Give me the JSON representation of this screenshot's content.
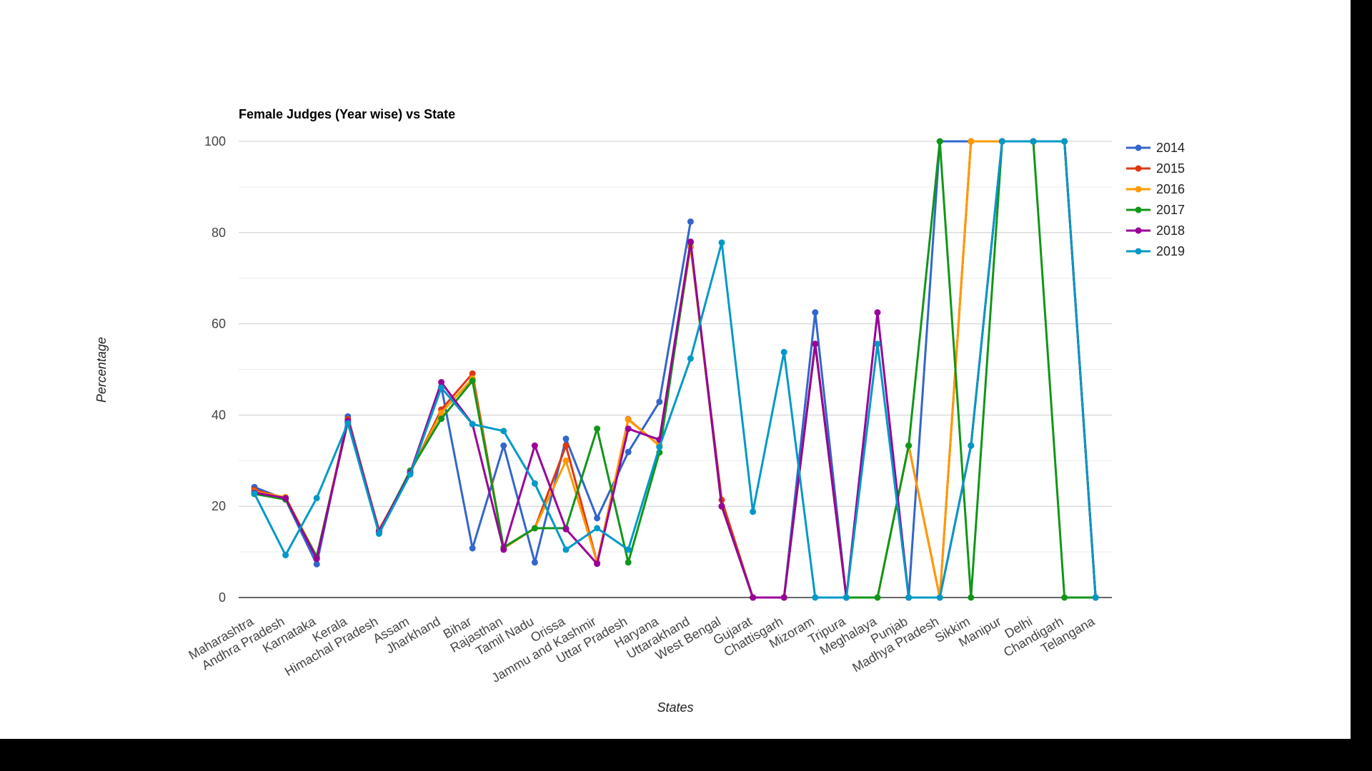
{
  "chart_data": {
    "type": "line",
    "title": "Female Judges (Year wise) vs State",
    "xlabel": "States",
    "ylabel": "Percentage",
    "ylim": [
      0,
      100
    ],
    "yticks": [
      0,
      20,
      40,
      60,
      80,
      100
    ],
    "grid": true,
    "legend_position": "right",
    "categories": [
      "Maharashtra",
      "Andhra Pradesh",
      "Karnataka",
      "Kerala",
      "Himachal Pradesh",
      "Assam",
      "Jharkhand",
      "Bihar",
      "Rajasthan",
      "Tamil Nadu",
      "Orissa",
      "Jammu and Kashmir",
      "Uttar Pradesh",
      "Haryana",
      "Uttarakhand",
      "West Bengal",
      "Gujarat",
      "Chattisgarh",
      "Mizoram",
      "Tripura",
      "Meghalaya",
      "Punjab",
      "Madhya Pradesh",
      "Sikkim",
      "Manipur",
      "Delhi",
      "Chandigarh",
      "Telangana"
    ],
    "series": [
      {
        "name": "2014",
        "color": "#3366cc",
        "values": [
          24.2,
          21.5,
          7.3,
          39.7,
          14.5,
          27.3,
          46.2,
          10.8,
          33.3,
          7.7,
          34.8,
          17.4,
          31.9,
          42.9,
          82.4,
          null,
          0,
          0,
          62.5,
          0,
          null,
          0,
          100,
          100,
          100,
          100,
          100,
          0
        ]
      },
      {
        "name": "2015",
        "color": "#dc3912",
        "values": [
          23.6,
          21.8,
          8.8,
          39.1,
          14.8,
          27.3,
          41.2,
          49.1,
          10.8,
          15.2,
          33.3,
          7.7,
          39.1,
          33.3,
          76.9,
          21.4,
          0,
          0,
          55.6,
          0,
          null,
          33.3,
          0,
          100,
          100,
          100,
          100,
          0
        ]
      },
      {
        "name": "2016",
        "color": "#ff9900",
        "values": [
          23.2,
          22.0,
          9.0,
          38.5,
          14.6,
          27.5,
          40.5,
          48.0,
          10.8,
          15.2,
          30.0,
          7.7,
          39.0,
          33.3,
          77.0,
          20.0,
          0,
          0,
          55.6,
          0,
          0,
          33.3,
          0,
          100,
          100,
          100,
          100,
          0
        ]
      },
      {
        "name": "2017",
        "color": "#109618",
        "values": [
          22.7,
          21.5,
          9.0,
          38.5,
          14.3,
          27.8,
          39.2,
          47.5,
          11.0,
          15.2,
          15.2,
          37.0,
          7.7,
          31.8,
          77.8,
          20.0,
          0,
          0,
          55.6,
          0,
          0,
          33.3,
          100,
          0,
          100,
          100,
          0,
          0
        ]
      },
      {
        "name": "2018",
        "color": "#990099",
        "values": [
          23.0,
          21.8,
          8.5,
          38.7,
          14.5,
          27.3,
          47.2,
          38.0,
          10.5,
          33.3,
          15.0,
          7.4,
          37.0,
          34.6,
          78.0,
          20.0,
          0,
          0,
          55.6,
          0,
          62.5,
          0,
          0,
          33.3,
          100,
          100,
          100,
          0
        ]
      },
      {
        "name": "2019",
        "color": "#0099c6",
        "values": [
          22.8,
          9.3,
          21.8,
          38.2,
          14.0,
          27.0,
          46.0,
          38.0,
          36.5,
          25.0,
          10.5,
          15.2,
          10.5,
          33.0,
          52.4,
          77.8,
          18.8,
          53.8,
          0,
          0,
          55.6,
          0,
          0,
          33.3,
          100,
          100,
          100,
          0
        ]
      }
    ]
  }
}
